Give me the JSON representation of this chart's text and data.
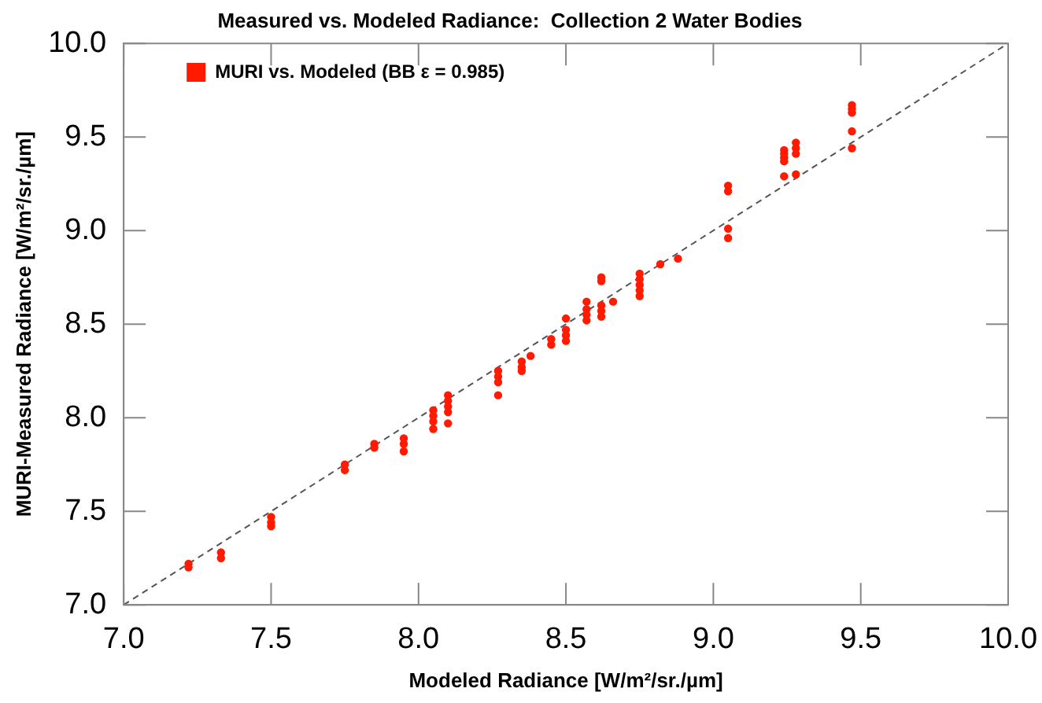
{
  "chart_data": {
    "type": "scatter",
    "title": "Measured vs. Modeled Radiance:  Collection 2 Water Bodies",
    "xlabel": "Modeled Radiance [W/m²/sr./µm]",
    "ylabel": "MURI-Measured Radiance [W/m²/sr./µm]",
    "xlim": [
      7.0,
      10.0
    ],
    "ylim": [
      7.0,
      10.0
    ],
    "xticks": [
      {
        "value": 7,
        "label": "7.0"
      },
      {
        "value": 7.5,
        "label": "7.5"
      },
      {
        "value": 8,
        "label": "8.0"
      },
      {
        "value": 8.5,
        "label": "8.5"
      },
      {
        "value": 9,
        "label": "9.0"
      },
      {
        "value": 9.5,
        "label": "9.5"
      },
      {
        "value": 10,
        "label": "10.0"
      }
    ],
    "yticks": [
      {
        "value": 7,
        "label": "7.0"
      },
      {
        "value": 7.5,
        "label": "7.5"
      },
      {
        "value": 8,
        "label": "8.0"
      },
      {
        "value": 8.5,
        "label": "8.5"
      },
      {
        "value": 9,
        "label": "9.0"
      },
      {
        "value": 9.5,
        "label": "9.5"
      },
      {
        "value": 10,
        "label": "10.0"
      }
    ],
    "grid": false,
    "legend": "top left",
    "marker": "circle",
    "series": [
      {
        "name": "MURI vs. Modeled (BB ε = 0.985)",
        "color": "#ff1a00",
        "x": [
          7.22,
          7.22,
          7.33,
          7.33,
          7.5,
          7.5,
          7.5,
          7.75,
          7.75,
          7.85,
          7.85,
          7.95,
          7.95,
          7.95,
          8.05,
          8.05,
          8.05,
          8.05,
          8.1,
          8.1,
          8.1,
          8.1,
          8.1,
          8.27,
          8.27,
          8.27,
          8.27,
          8.35,
          8.35,
          8.35,
          8.38,
          8.45,
          8.45,
          8.5,
          8.5,
          8.5,
          8.5,
          8.57,
          8.57,
          8.57,
          8.57,
          8.62,
          8.62,
          8.62,
          8.62,
          8.62,
          8.66,
          8.75,
          8.75,
          8.75,
          8.75,
          8.75,
          8.82,
          8.88,
          9.05,
          9.05,
          9.05,
          9.05,
          9.24,
          9.24,
          9.24,
          9.24,
          9.24,
          9.28,
          9.28,
          9.28,
          9.28,
          9.47,
          9.47,
          9.47,
          9.47,
          9.47
        ],
        "values": [
          7.22,
          7.2,
          7.28,
          7.25,
          7.47,
          7.44,
          7.42,
          7.75,
          7.72,
          7.86,
          7.84,
          7.89,
          7.86,
          7.82,
          8.04,
          8.01,
          7.98,
          7.94,
          8.12,
          8.09,
          8.06,
          8.03,
          7.97,
          8.25,
          8.22,
          8.19,
          8.12,
          8.3,
          8.27,
          8.25,
          8.33,
          8.42,
          8.39,
          8.53,
          8.47,
          8.44,
          8.41,
          8.62,
          8.58,
          8.55,
          8.52,
          8.75,
          8.73,
          8.6,
          8.57,
          8.54,
          8.62,
          8.77,
          8.74,
          8.71,
          8.68,
          8.65,
          8.82,
          8.85,
          9.24,
          9.21,
          9.01,
          8.96,
          9.43,
          9.41,
          9.39,
          9.37,
          9.29,
          9.47,
          9.44,
          9.41,
          9.3,
          9.67,
          9.65,
          9.63,
          9.53,
          9.44
        ]
      },
      {
        "type": "line",
        "color": "#555555",
        "line_style": "dashed",
        "marker": "none",
        "x": [
          7.0,
          10.0
        ],
        "values": [
          7.0,
          10.0
        ]
      }
    ]
  }
}
